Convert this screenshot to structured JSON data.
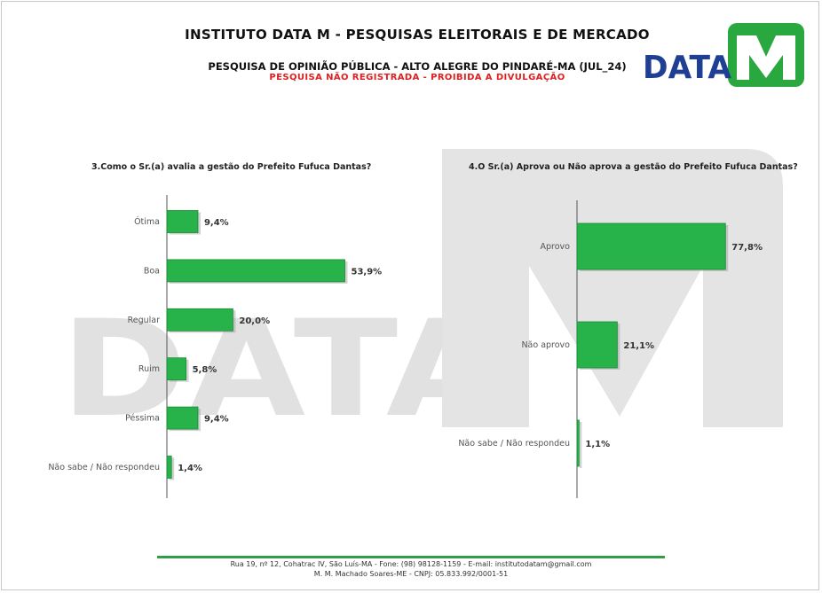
{
  "header": {
    "title": "INSTITUTO DATA M - PESQUISAS ELEITORAIS E DE MERCADO",
    "subtitle": "PESQUISA DE OPINIÃO PÚBLICA - ALTO ALEGRE DO PINDARÉ-MA (JUL_24)",
    "warning": "PESQUISA NÃO REGISTRADA - PROIBIDA A DIVULGAÇÃO",
    "logo_text": "DATA",
    "logo_mark": "M"
  },
  "watermark_text": "DATA",
  "colors": {
    "bar": "#27b24a",
    "bar_dark": "#1a8a36",
    "logo_blue": "#1f3f95",
    "logo_green": "#2aa840",
    "warning": "#e02020",
    "watermark": "#dcdcdc"
  },
  "chart_data": [
    {
      "type": "bar",
      "orientation": "horizontal",
      "title": "3.Como o Sr.(a) avalia a gestão do Prefeito Fufuca Dantas?",
      "categories": [
        "Ótima",
        "Boa",
        "Regular",
        "Ruim",
        "Péssima",
        "Não sabe / Não respondeu"
      ],
      "values": [
        9.4,
        53.9,
        20.0,
        5.8,
        9.4,
        1.4
      ],
      "labels": [
        "9,4%",
        "53,9%",
        "20,0%",
        "5,8%",
        "9,4%",
        "1,4%"
      ],
      "grid": false
    },
    {
      "type": "bar",
      "orientation": "horizontal",
      "title": "4.O Sr.(a) Aprova ou Não aprova a gestão do Prefeito Fufuca Dantas?",
      "categories": [
        "Aprovo",
        "Não aprovo",
        "Não sabe / Não respondeu"
      ],
      "values": [
        77.8,
        21.1,
        1.1
      ],
      "labels": [
        "77,8%",
        "21,1%",
        "1,1%"
      ],
      "grid": false
    }
  ],
  "footer": {
    "line1": "Rua 19, nº 12, Cohatrac IV, São Luís-MA - Fone: (98) 98128-1159 - E-mail: institutodatam@gmail.com",
    "line2": "M. M. Machado Soares-ME - CNPJ: 05.833.992/0001-51"
  }
}
